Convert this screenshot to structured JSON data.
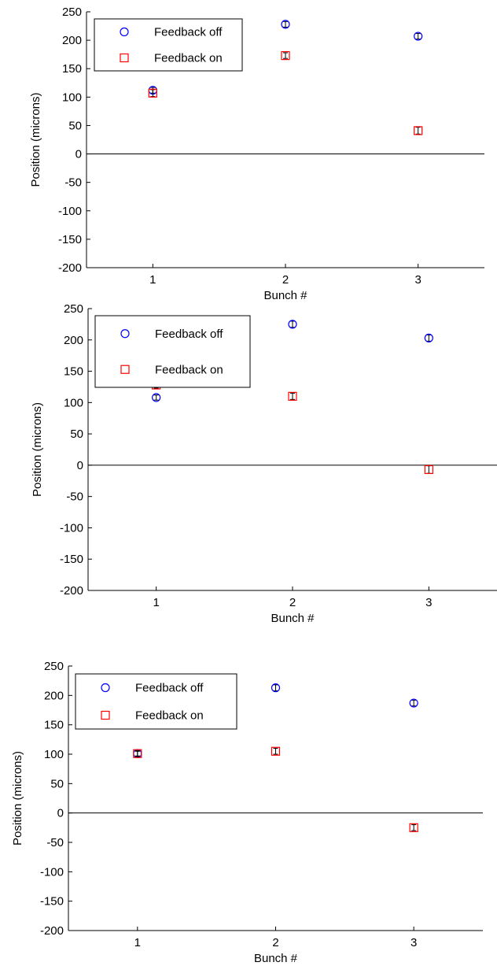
{
  "figure": {
    "colors": {
      "off": "#0000ff",
      "on": "#ff0000",
      "axis": "#000000",
      "zero_line": "#000000"
    }
  },
  "chart_data": [
    {
      "type": "scatter",
      "xlabel": "Bunch #",
      "ylabel": "Position (microns)",
      "xlim": [
        0.5,
        3.5
      ],
      "ylim": [
        -200,
        250
      ],
      "xticks": [
        "1",
        "2",
        "3"
      ],
      "yticks": [
        "250",
        "200",
        "150",
        "100",
        "50",
        "0",
        "-50",
        "-100",
        "-150",
        "-200"
      ],
      "legend_position": "top-left",
      "series": [
        {
          "name": "Feedback off",
          "marker": "circle",
          "color": "#0000ff",
          "x": [
            1,
            2,
            3
          ],
          "y": [
            112,
            228,
            207
          ],
          "err": [
            5,
            5,
            5
          ]
        },
        {
          "name": "Feedback on",
          "marker": "square",
          "color": "#ff0000",
          "x": [
            1,
            2,
            3
          ],
          "y": [
            107,
            173,
            41
          ],
          "err": [
            6,
            5,
            6
          ]
        }
      ],
      "reference_line": {
        "y": 0
      }
    },
    {
      "type": "scatter",
      "xlabel": "Bunch #",
      "ylabel": "Position (microns)",
      "xlim": [
        0.5,
        3.5
      ],
      "ylim": [
        -200,
        250
      ],
      "xticks": [
        "1",
        "2",
        "3"
      ],
      "yticks": [
        "250",
        "200",
        "150",
        "100",
        "50",
        "0",
        "-50",
        "-100",
        "-150",
        "-200"
      ],
      "legend_position": "top-left",
      "series": [
        {
          "name": "Feedback off",
          "marker": "circle",
          "color": "#0000ff",
          "x": [
            1,
            2,
            3
          ],
          "y": [
            108,
            225,
            203
          ],
          "err": [
            4,
            5,
            5
          ]
        },
        {
          "name": "Feedback on",
          "marker": "square",
          "color": "#ff0000",
          "x": [
            1,
            2,
            3
          ],
          "y": [
            128,
            110,
            -7
          ],
          "err": [
            5,
            5,
            6
          ]
        }
      ],
      "reference_line": {
        "y": 0
      }
    },
    {
      "type": "scatter",
      "xlabel": "Bunch #",
      "ylabel": "Position (microns)",
      "xlim": [
        0.5,
        3.5
      ],
      "ylim": [
        -200,
        250
      ],
      "xticks": [
        "1",
        "2",
        "3"
      ],
      "yticks": [
        "250",
        "200",
        "150",
        "100",
        "50",
        "0",
        "-50",
        "-100",
        "-150",
        "-200"
      ],
      "legend_position": "top-left",
      "series": [
        {
          "name": "Feedback off",
          "marker": "circle",
          "color": "#0000ff",
          "x": [
            1,
            2,
            3
          ],
          "y": [
            101,
            213,
            187
          ],
          "err": [
            4,
            5,
            5
          ]
        },
        {
          "name": "Feedback on",
          "marker": "square",
          "color": "#ff0000",
          "x": [
            1,
            2,
            3
          ],
          "y": [
            101,
            105,
            -25
          ],
          "err": [
            5,
            5,
            5
          ]
        }
      ],
      "reference_line": {
        "y": 0
      }
    }
  ]
}
